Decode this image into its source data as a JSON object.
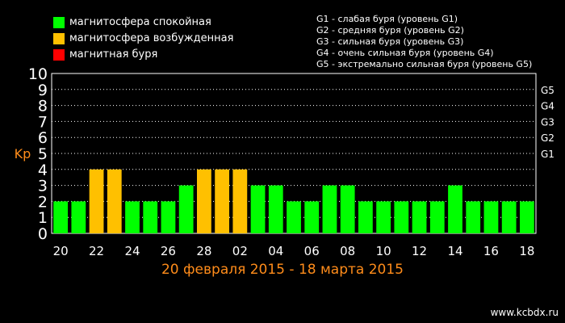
{
  "legend": [
    {
      "label": "магнитосфера спокойная",
      "color": "#00ff00"
    },
    {
      "label": "магнитосфера возбужденная",
      "color": "#ffc000"
    },
    {
      "label": "магнитная буря",
      "color": "#ff0000"
    }
  ],
  "storm_levels": [
    "G1 - слабая буря (уровень G1)",
    "G2 - средняя буря (уровень G2)",
    "G3 - сильная буря (уровень G3)",
    "G4 - очень сильная буря (уровень G4)",
    "G5 - экстремально сильная буря (уровень G5)"
  ],
  "site": "www.kcbdx.ru",
  "chart_data": {
    "type": "bar",
    "title": "20 февраля 2015 - 18 марта 2015",
    "ylabel": "Kp",
    "ylim": [
      0,
      10
    ],
    "yticks": [
      "0",
      "1",
      "2",
      "3",
      "4",
      "5",
      "6",
      "7",
      "8",
      "9",
      "10"
    ],
    "right_ticks": [
      {
        "label": "G1",
        "value": 5
      },
      {
        "label": "G2",
        "value": 6
      },
      {
        "label": "G3",
        "value": 7
      },
      {
        "label": "G4",
        "value": 8
      },
      {
        "label": "G5",
        "value": 9
      }
    ],
    "xtick_labels": [
      "20",
      "22",
      "24",
      "26",
      "28",
      "02",
      "04",
      "06",
      "08",
      "10",
      "12",
      "14",
      "16",
      "18"
    ],
    "xtick_bar_index": [
      0,
      2,
      4,
      6,
      8,
      10,
      12,
      14,
      16,
      18,
      20,
      22,
      24,
      26
    ],
    "values": [
      2,
      2,
      4,
      4,
      2,
      2,
      2,
      3,
      4,
      4,
      4,
      3,
      3,
      2,
      2,
      3,
      3,
      2,
      2,
      2,
      2,
      2,
      3,
      2,
      2,
      2,
      2
    ],
    "grid": true,
    "colors": {
      "quiet": "#00ff00",
      "disturbed": "#ffc000",
      "storm": "#ff0000"
    }
  }
}
